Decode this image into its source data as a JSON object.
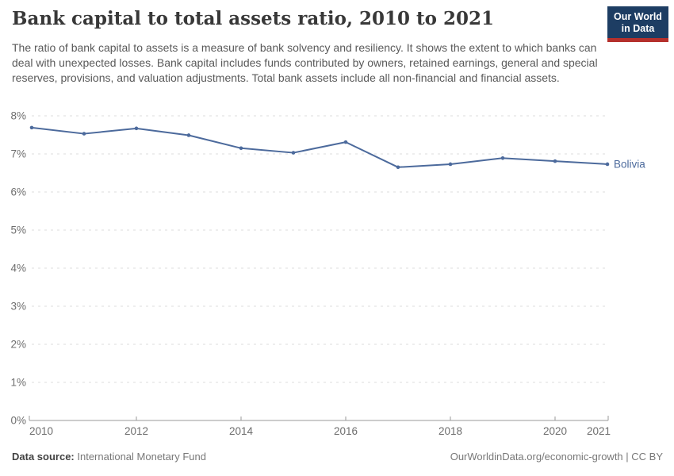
{
  "header": {
    "title": "Bank capital to total assets ratio, 2010 to 2021",
    "subtitle": "The ratio of bank capital to assets is a measure of bank solvency and resiliency. It shows the extent to which banks can deal with unexpected losses. Bank capital includes funds contributed by owners, retained earnings, general and special reserves, provisions, and valuation adjustments. Total bank assets include all non-financial and financial assets.",
    "logo": {
      "line1": "Our World",
      "line2": "in Data",
      "bg_color": "#1d3d63",
      "accent_color": "#b5302c"
    }
  },
  "chart_data": {
    "type": "line",
    "title": "Bank capital to total assets ratio, 2010 to 2021",
    "x": [
      2010,
      2011,
      2012,
      2013,
      2014,
      2015,
      2016,
      2017,
      2018,
      2019,
      2020,
      2021
    ],
    "series": [
      {
        "name": "Bolivia",
        "color": "#4C6A9C",
        "values": [
          7.69,
          7.53,
          7.67,
          7.49,
          7.15,
          7.03,
          7.31,
          6.65,
          6.73,
          6.89,
          6.81,
          6.73
        ]
      }
    ],
    "xlabel": "",
    "ylabel": "",
    "ylim": [
      0,
      8
    ],
    "y_ticks": [
      0,
      1,
      2,
      3,
      4,
      5,
      6,
      7,
      8
    ],
    "y_tick_labels": [
      "0%",
      "1%",
      "2%",
      "3%",
      "4%",
      "5%",
      "6%",
      "7%",
      "8%"
    ],
    "x_ticks": [
      2010,
      2012,
      2014,
      2016,
      2018,
      2020,
      2021
    ],
    "grid": "horizontal-dashed",
    "legend_position": "end-of-line-label",
    "axis_color": "#9a9a9a",
    "grid_color": "#dcdcdc",
    "tick_label_color": "#6e6e6e"
  },
  "footer": {
    "datasource_label": "Data source:",
    "datasource_value": "International Monetary Fund",
    "credit": "OurWorldinData.org/economic-growth | CC BY"
  }
}
